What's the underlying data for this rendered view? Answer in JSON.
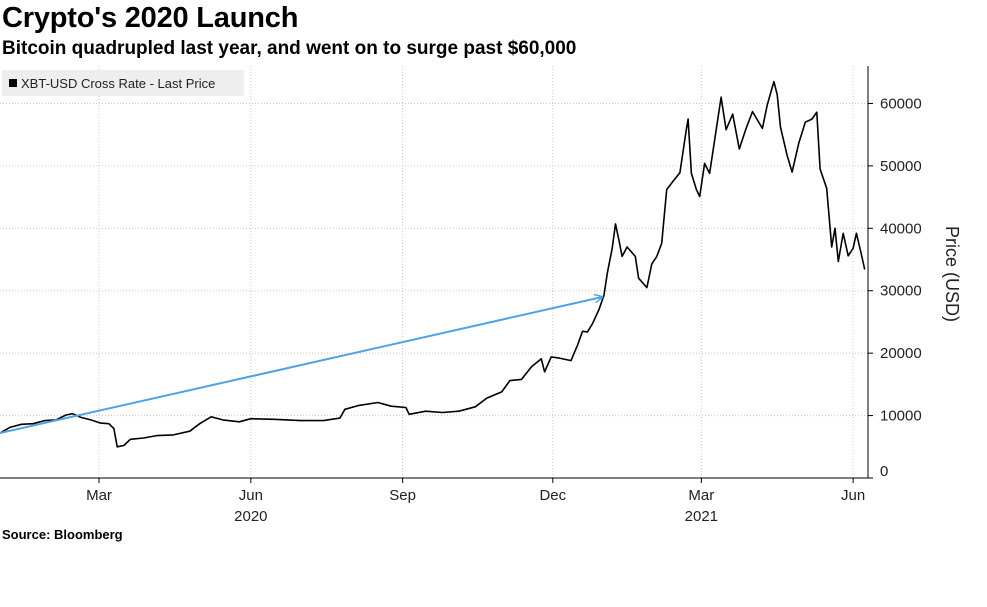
{
  "title": "Crypto's 2020 Launch",
  "subtitle": "Bitcoin quadrupled last year, and went on to surge past $60,000",
  "source": "Source: Bloomberg",
  "chart_data": {
    "type": "line",
    "title": "Crypto's 2020 Launch",
    "subtitle": "Bitcoin quadrupled last year, and went on to surge past $60,000",
    "ylabel": "Price (USD)",
    "xlabel": "",
    "legend": {
      "entries": [
        "XBT-USD Cross Rate - Last Price"
      ],
      "placement": "top-left"
    },
    "grid": true,
    "ylim": [
      0,
      66000
    ],
    "xlim": [
      "2020-01-01",
      "2021-06-10"
    ],
    "yticks": [
      0,
      10000,
      20000,
      30000,
      40000,
      50000,
      60000
    ],
    "xticks": [
      {
        "date": "2020-03-01",
        "label": "Mar"
      },
      {
        "date": "2020-06-01",
        "label": "Jun"
      },
      {
        "date": "2020-09-01",
        "label": "Sep"
      },
      {
        "date": "2020-12-01",
        "label": "Dec"
      },
      {
        "date": "2021-03-01",
        "label": "Mar"
      },
      {
        "date": "2021-06-01",
        "label": "Jun"
      }
    ],
    "year_labels": [
      {
        "date": "2020-06-01",
        "label": "2020"
      },
      {
        "date": "2021-03-01",
        "label": "2021"
      }
    ],
    "series": [
      {
        "name": "XBT-USD Cross Rate - Last Price",
        "color": "#000000",
        "points": [
          [
            "2020-01-01",
            7200
          ],
          [
            "2020-01-07",
            8100
          ],
          [
            "2020-01-14",
            8600
          ],
          [
            "2020-01-21",
            8700
          ],
          [
            "2020-01-28",
            9200
          ],
          [
            "2020-02-04",
            9300
          ],
          [
            "2020-02-10",
            10100
          ],
          [
            "2020-02-14",
            10300
          ],
          [
            "2020-02-19",
            9700
          ],
          [
            "2020-02-25",
            9300
          ],
          [
            "2020-03-02",
            8800
          ],
          [
            "2020-03-07",
            8700
          ],
          [
            "2020-03-10",
            7900
          ],
          [
            "2020-03-12",
            5000
          ],
          [
            "2020-03-16",
            5200
          ],
          [
            "2020-03-20",
            6200
          ],
          [
            "2020-03-28",
            6400
          ],
          [
            "2020-04-05",
            6800
          ],
          [
            "2020-04-15",
            6900
          ],
          [
            "2020-04-25",
            7500
          ],
          [
            "2020-05-01",
            8700
          ],
          [
            "2020-05-08",
            9800
          ],
          [
            "2020-05-15",
            9300
          ],
          [
            "2020-05-25",
            9000
          ],
          [
            "2020-06-01",
            9500
          ],
          [
            "2020-06-15",
            9400
          ],
          [
            "2020-07-01",
            9200
          ],
          [
            "2020-07-15",
            9200
          ],
          [
            "2020-07-25",
            9600
          ],
          [
            "2020-07-28",
            11000
          ],
          [
            "2020-08-05",
            11600
          ],
          [
            "2020-08-17",
            12100
          ],
          [
            "2020-08-25",
            11500
          ],
          [
            "2020-09-03",
            11300
          ],
          [
            "2020-09-05",
            10200
          ],
          [
            "2020-09-15",
            10700
          ],
          [
            "2020-09-25",
            10500
          ],
          [
            "2020-10-05",
            10700
          ],
          [
            "2020-10-15",
            11400
          ],
          [
            "2020-10-22",
            12800
          ],
          [
            "2020-10-31",
            13800
          ],
          [
            "2020-11-05",
            15600
          ],
          [
            "2020-11-12",
            15800
          ],
          [
            "2020-11-18",
            17800
          ],
          [
            "2020-11-24",
            19100
          ],
          [
            "2020-11-26",
            17000
          ],
          [
            "2020-11-30",
            19400
          ],
          [
            "2020-12-05",
            19200
          ],
          [
            "2020-12-12",
            18800
          ],
          [
            "2020-12-16",
            21300
          ],
          [
            "2020-12-19",
            23500
          ],
          [
            "2020-12-22",
            23400
          ],
          [
            "2020-12-25",
            24700
          ],
          [
            "2020-12-29",
            27000
          ],
          [
            "2021-01-01",
            29300
          ],
          [
            "2021-01-03",
            32800
          ],
          [
            "2021-01-06",
            36800
          ],
          [
            "2021-01-08",
            40700
          ],
          [
            "2021-01-10",
            38200
          ],
          [
            "2021-01-12",
            35500
          ],
          [
            "2021-01-15",
            37000
          ],
          [
            "2021-01-20",
            35500
          ],
          [
            "2021-01-22",
            32000
          ],
          [
            "2021-01-27",
            30500
          ],
          [
            "2021-01-30",
            34300
          ],
          [
            "2021-02-02",
            35500
          ],
          [
            "2021-02-05",
            37600
          ],
          [
            "2021-02-08",
            46200
          ],
          [
            "2021-02-12",
            47600
          ],
          [
            "2021-02-16",
            48900
          ],
          [
            "2021-02-20",
            56000
          ],
          [
            "2021-02-21",
            57500
          ],
          [
            "2021-02-23",
            48800
          ],
          [
            "2021-02-26",
            46200
          ],
          [
            "2021-02-28",
            45100
          ],
          [
            "2021-03-03",
            50400
          ],
          [
            "2021-03-06",
            48800
          ],
          [
            "2021-03-10",
            55800
          ],
          [
            "2021-03-13",
            61000
          ],
          [
            "2021-03-16",
            55800
          ],
          [
            "2021-03-20",
            58300
          ],
          [
            "2021-03-24",
            52700
          ],
          [
            "2021-03-28",
            55900
          ],
          [
            "2021-04-01",
            58700
          ],
          [
            "2021-04-07",
            56000
          ],
          [
            "2021-04-10",
            59800
          ],
          [
            "2021-04-14",
            63500
          ],
          [
            "2021-04-16",
            61400
          ],
          [
            "2021-04-18",
            56200
          ],
          [
            "2021-04-22",
            51700
          ],
          [
            "2021-04-25",
            49000
          ],
          [
            "2021-04-29",
            53600
          ],
          [
            "2021-05-03",
            57000
          ],
          [
            "2021-05-07",
            57500
          ],
          [
            "2021-05-10",
            58600
          ],
          [
            "2021-05-12",
            49500
          ],
          [
            "2021-05-16",
            46400
          ],
          [
            "2021-05-19",
            37000
          ],
          [
            "2021-05-21",
            40000
          ],
          [
            "2021-05-23",
            34700
          ],
          [
            "2021-05-26",
            39200
          ],
          [
            "2021-05-29",
            35600
          ],
          [
            "2021-06-01",
            36800
          ],
          [
            "2021-06-03",
            39200
          ],
          [
            "2021-06-06",
            35800
          ],
          [
            "2021-06-08",
            33400
          ]
        ]
      }
    ],
    "annotations": [
      {
        "type": "arrow",
        "color": "#4da3e8",
        "from": [
          "2020-01-01",
          7200
        ],
        "to": [
          "2020-12-31",
          29000
        ]
      }
    ]
  }
}
